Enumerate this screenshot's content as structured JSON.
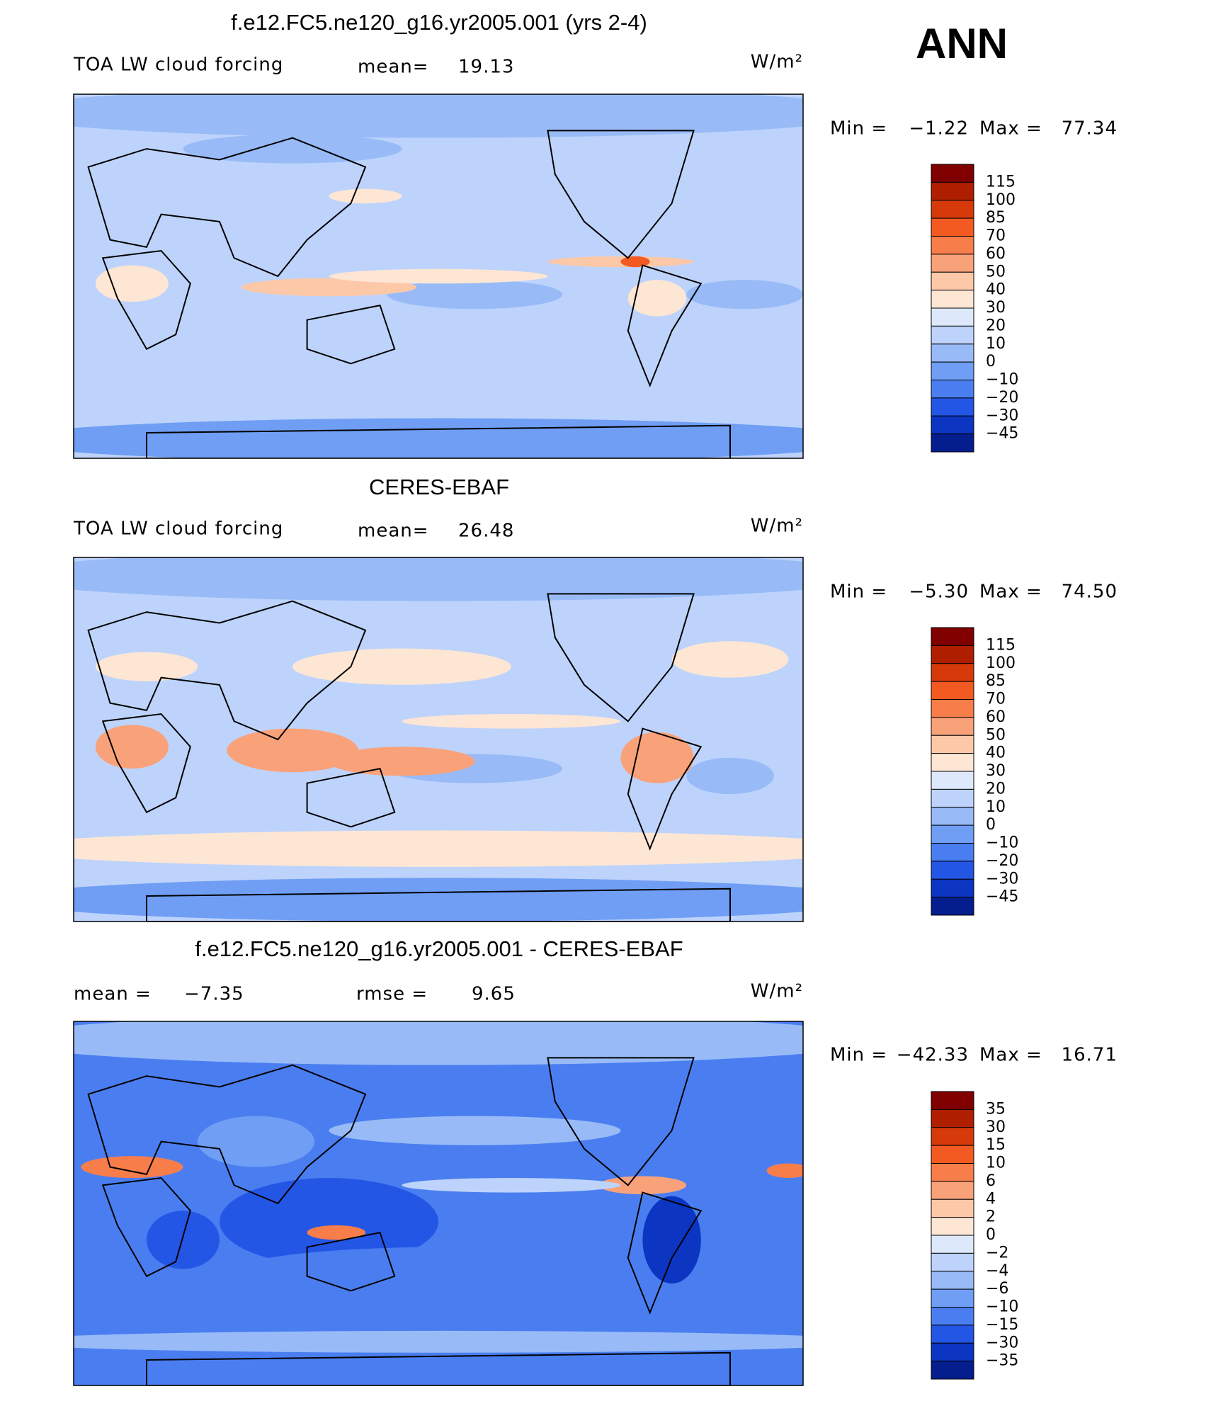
{
  "header": {
    "season": "ANN"
  },
  "panels": [
    {
      "title": "f.e12.FC5.ne120_g16.yr2005.001 (yrs 2-4)",
      "left_label": "TOA LW cloud forcing",
      "mean_label": "mean=",
      "mean": "19.13",
      "units": "W/m²",
      "min_label": "Min =",
      "min": "−1.22",
      "max_label": "Max =",
      "max": "77.34",
      "levels": [
        "115",
        "100",
        "85",
        "70",
        "60",
        "50",
        "40",
        "30",
        "20",
        "10",
        "0",
        "−10",
        "−20",
        "−30",
        "−45"
      ]
    },
    {
      "title": "CERES-EBAF",
      "left_label": "TOA LW cloud forcing",
      "mean_label": "mean=",
      "mean": "26.48",
      "units": "W/m²",
      "min_label": "Min =",
      "min": "−5.30",
      "max_label": "Max =",
      "max": "74.50",
      "levels": [
        "115",
        "100",
        "85",
        "70",
        "60",
        "50",
        "40",
        "30",
        "20",
        "10",
        "0",
        "−10",
        "−20",
        "−30",
        "−45"
      ]
    },
    {
      "title": "f.e12.FC5.ne120_g16.yr2005.001 - CERES-EBAF",
      "mean_label": "mean =",
      "mean": "−7.35",
      "rmse_label": "rmse =",
      "rmse": "9.65",
      "units": "W/m²",
      "min_label": "Min =",
      "min": "−42.33",
      "max_label": "Max =",
      "max": "16.71",
      "levels": [
        "35",
        "30",
        "15",
        "10",
        "6",
        "4",
        "2",
        "0",
        "−2",
        "−4",
        "−6",
        "−10",
        "−15",
        "−30",
        "−35"
      ]
    }
  ]
}
